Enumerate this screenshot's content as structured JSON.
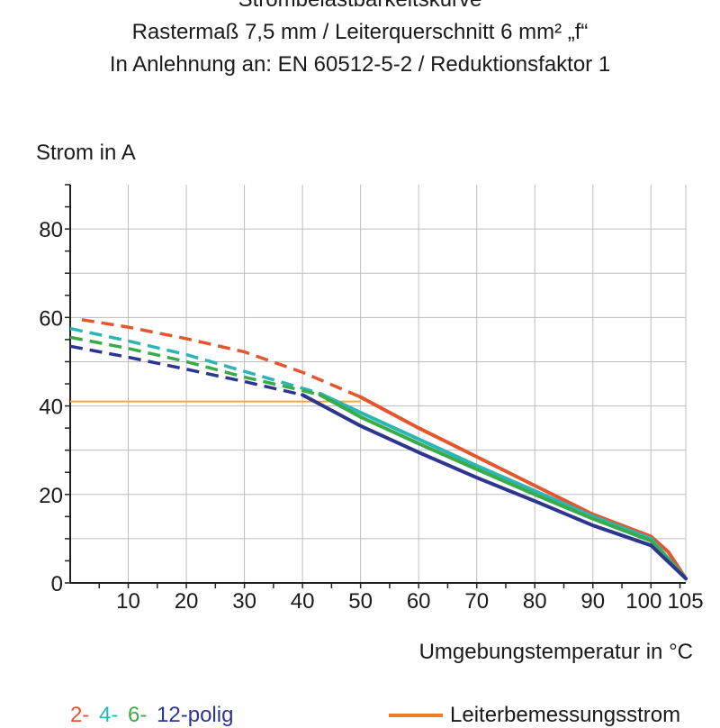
{
  "titles": [
    "Strombelastbarkeitskurve",
    "Rastermaß 7,5 mm / Leiterquerschnitt 6 mm² „f“",
    "In Anlehnung an: EN 60512-5-2 / Reduktionsfaktor 1"
  ],
  "chart_data": {
    "type": "line",
    "ylabel": "Strom in A",
    "xlabel": "Umgebungstemperatur in °C",
    "xlim": [
      0,
      106
    ],
    "ylim": [
      0,
      90
    ],
    "x_ticks": [
      10,
      20,
      30,
      40,
      50,
      60,
      70,
      80,
      90,
      100,
      105
    ],
    "y_ticks": [
      0,
      20,
      40,
      60,
      80
    ],
    "grid": true,
    "legend_position": "bottom",
    "series": [
      {
        "name": "2-",
        "color": "#e4572e",
        "dashed": [
          [
            2,
            59.5
          ],
          [
            10,
            57.8
          ],
          [
            20,
            55.2
          ],
          [
            30,
            52.2
          ],
          [
            40,
            47.6
          ],
          [
            50,
            42.0
          ]
        ],
        "solid": [
          [
            50,
            42.0
          ],
          [
            60,
            35.0
          ],
          [
            70,
            28.5
          ],
          [
            80,
            22.0
          ],
          [
            90,
            15.5
          ],
          [
            100,
            10.5
          ],
          [
            103,
            7.0
          ],
          [
            106,
            1.0
          ]
        ]
      },
      {
        "name": "4-",
        "color": "#2bb5b5",
        "dashed": [
          [
            0,
            57.5
          ],
          [
            10,
            54.7
          ],
          [
            20,
            51.6
          ],
          [
            30,
            47.8
          ],
          [
            40,
            44.0
          ],
          [
            43,
            42.8
          ]
        ],
        "solid": [
          [
            43,
            42.8
          ],
          [
            50,
            38.5
          ],
          [
            60,
            32.5
          ],
          [
            70,
            26.5
          ],
          [
            80,
            20.8
          ],
          [
            90,
            15.0
          ],
          [
            100,
            10.0
          ],
          [
            106,
            1.0
          ]
        ]
      },
      {
        "name": "6-",
        "color": "#3aab49",
        "dashed": [
          [
            0,
            55.5
          ],
          [
            10,
            53.0
          ],
          [
            20,
            50.0
          ],
          [
            30,
            46.5
          ],
          [
            40,
            43.5
          ],
          [
            43,
            42.5
          ]
        ],
        "solid": [
          [
            43,
            42.5
          ],
          [
            50,
            37.5
          ],
          [
            60,
            31.5
          ],
          [
            70,
            25.7
          ],
          [
            80,
            20.0
          ],
          [
            90,
            14.5
          ],
          [
            100,
            9.5
          ],
          [
            106,
            1.0
          ]
        ]
      },
      {
        "name": "12-polig",
        "color": "#2e3590",
        "dashed": [
          [
            0,
            53.5
          ],
          [
            10,
            51.0
          ],
          [
            20,
            48.3
          ],
          [
            30,
            45.5
          ],
          [
            40,
            42.5
          ]
        ],
        "solid": [
          [
            40,
            42.5
          ],
          [
            50,
            35.5
          ],
          [
            60,
            29.5
          ],
          [
            70,
            23.8
          ],
          [
            80,
            18.5
          ],
          [
            90,
            13.0
          ],
          [
            100,
            8.5
          ],
          [
            106,
            1.0
          ]
        ]
      }
    ],
    "rated_current": {
      "name": "Leiterbemessungsstrom",
      "value": 41,
      "x_end": 50,
      "color": "#f7a83a"
    },
    "legend_entries": [
      "2-",
      "4-",
      "6-",
      "12-polig"
    ],
    "legend_colors": [
      "#e4572e",
      "#2bb5b5",
      "#3aab49",
      "#2e3590"
    ],
    "rated_legend_color": "#f07c22"
  }
}
